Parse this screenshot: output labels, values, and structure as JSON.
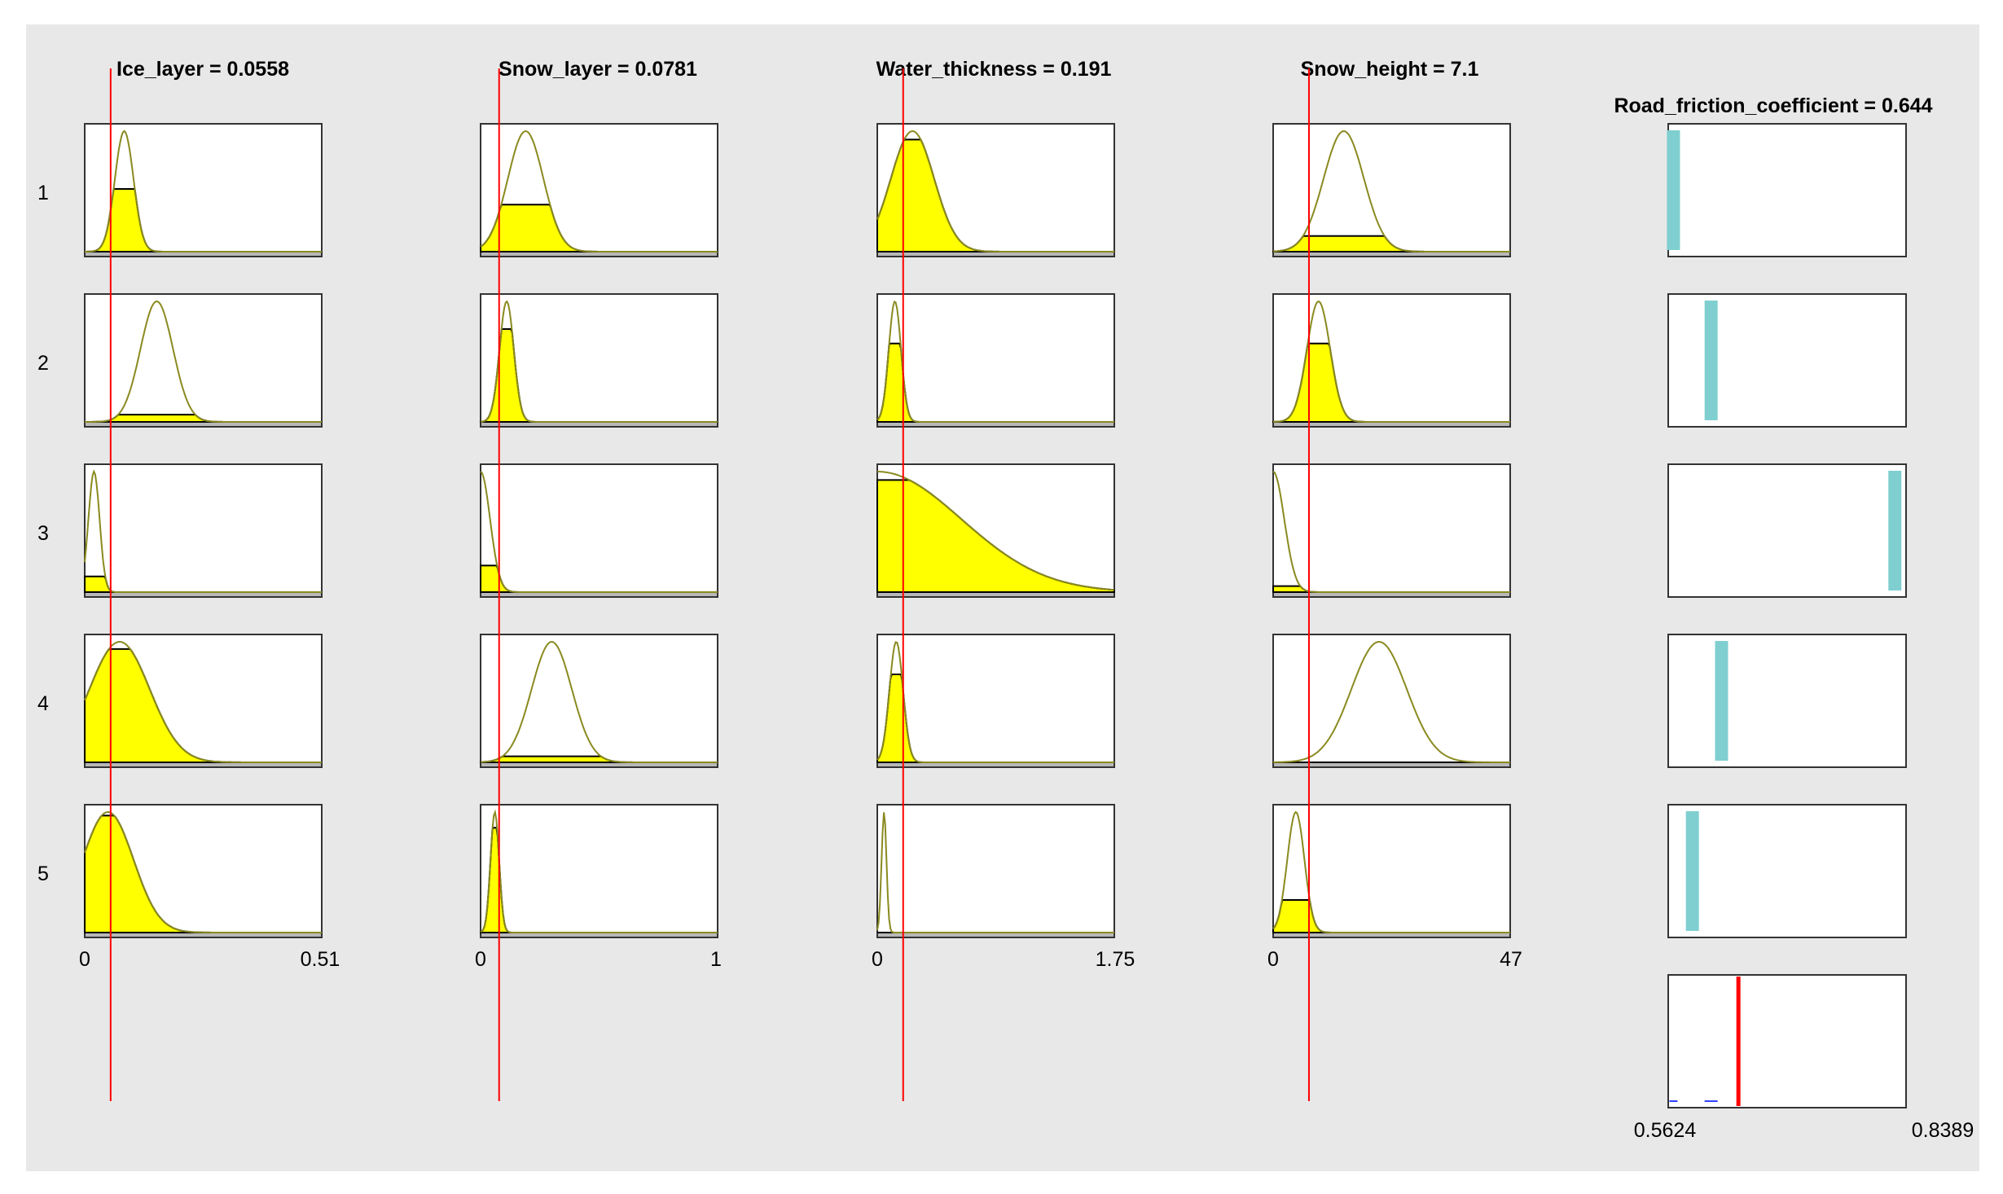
{
  "chart_data": {
    "type": "fuzzy-rule-viewer",
    "background_color": "#e8e8e8",
    "input_fill_color": "#ffff00",
    "output_fill_color": "#7fcfd0",
    "indicator_color": "#ff0000",
    "rows": [
      "1",
      "2",
      "3",
      "4",
      "5"
    ],
    "inputs": [
      {
        "title": "Ice_layer = 0.0558",
        "value": 0.0558,
        "range": [
          0,
          0.51
        ],
        "range_labels": [
          "0",
          "0.51"
        ],
        "mfs": [
          {
            "mean": 0.085,
            "sigma": 0.02,
            "strength": 0.52
          },
          {
            "mean": 0.155,
            "sigma": 0.035,
            "strength": 0.06
          },
          {
            "mean": 0.02,
            "sigma": 0.012,
            "strength": 0.13
          },
          {
            "mean": 0.075,
            "sigma": 0.065,
            "strength": 0.94
          },
          {
            "mean": 0.05,
            "sigma": 0.055,
            "strength": 0.97
          }
        ]
      },
      {
        "title": "Snow_layer = 0.0781",
        "value": 0.0781,
        "range": [
          0,
          1
        ],
        "range_labels": [
          "0",
          "1"
        ],
        "mfs": [
          {
            "mean": 0.19,
            "sigma": 0.075,
            "strength": 0.39
          },
          {
            "mean": 0.11,
            "sigma": 0.03,
            "strength": 0.77
          },
          {
            "mean": 0.0,
            "sigma": 0.04,
            "strength": 0.22
          },
          {
            "mean": 0.3,
            "sigma": 0.085,
            "strength": 0.05
          },
          {
            "mean": 0.06,
            "sigma": 0.018,
            "strength": 0.87
          }
        ]
      },
      {
        "title": "Water_thickness = 0.191",
        "value": 0.191,
        "range": [
          0,
          1.75
        ],
        "range_labels": [
          "0",
          "1.75"
        ],
        "mfs": [
          {
            "mean": 0.26,
            "sigma": 0.16,
            "strength": 0.93
          },
          {
            "mean": 0.13,
            "sigma": 0.045,
            "strength": 0.65
          },
          {
            "mean": 0.0,
            "sigma": 0.62,
            "strength": 0.93
          },
          {
            "mean": 0.14,
            "sigma": 0.05,
            "strength": 0.73
          },
          {
            "mean": 0.05,
            "sigma": 0.018,
            "strength": 0.0
          }
        ]
      },
      {
        "title": "Snow_height = 7.1",
        "value": 7.1,
        "range": [
          0,
          47
        ],
        "range_labels": [
          "0",
          "47"
        ],
        "mfs": [
          {
            "mean": 14,
            "sigma": 4,
            "strength": 0.13
          },
          {
            "mean": 9,
            "sigma": 2.3,
            "strength": 0.65
          },
          {
            "mean": 0,
            "sigma": 2.2,
            "strength": 0.05
          },
          {
            "mean": 21,
            "sigma": 5.5,
            "strength": 0.0
          },
          {
            "mean": 4.5,
            "sigma": 1.7,
            "strength": 0.27
          }
        ]
      }
    ],
    "output": {
      "title": "Road_friction_coefficient = 0.644",
      "value": 0.644,
      "range": [
        0.5624,
        0.8389
      ],
      "range_labels": [
        "0.5624",
        "0.8389"
      ],
      "rules": [
        {
          "value": 0.5685
        },
        {
          "value": 0.6123
        },
        {
          "value": 0.8259
        },
        {
          "value": 0.6244
        },
        {
          "value": 0.5905
        }
      ]
    }
  }
}
